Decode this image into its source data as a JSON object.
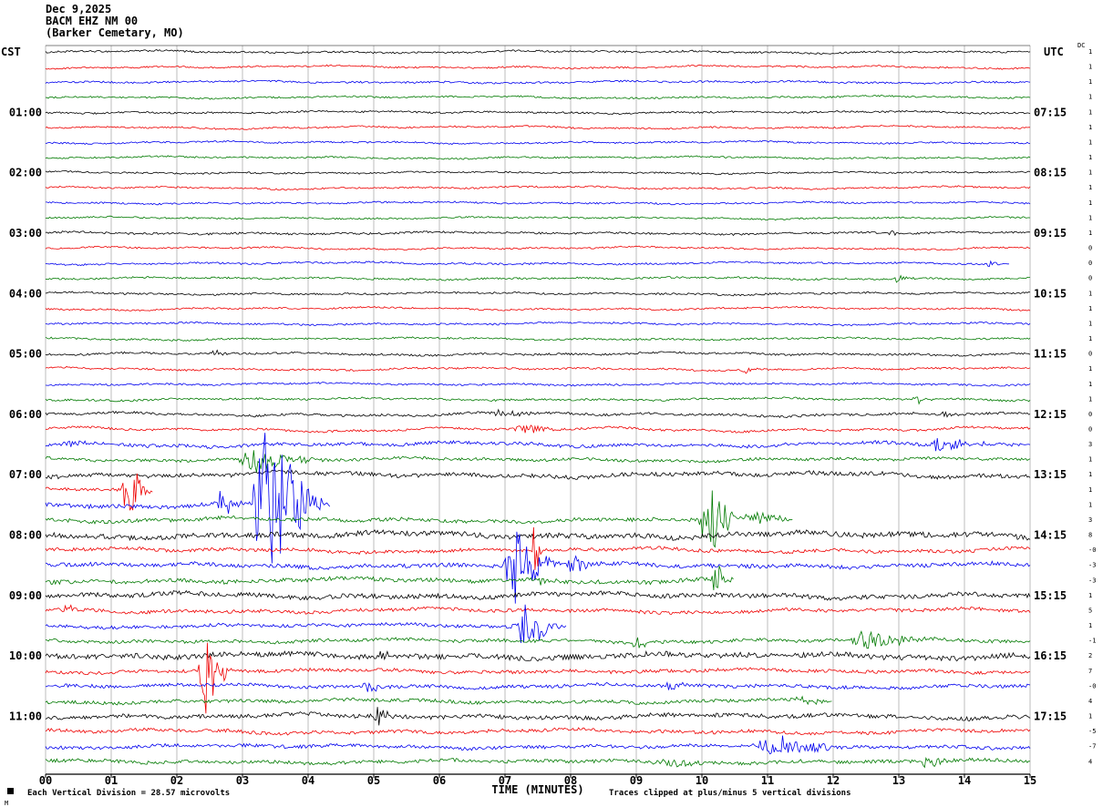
{
  "header": {
    "date_line": "Dec 9,2025",
    "station_line": "BACM EHZ NM 00",
    "location_line": "(Barker Cemetary, MO)"
  },
  "axis": {
    "left_tz": "CST",
    "right_tz": "UTC",
    "dc_header": "DC",
    "x_title": "TIME (MINUTES)",
    "footer_left": "Each Vertical Division =   28.57 microvolts",
    "footer_right": "Traces clipped at plus/minus 5 vertical divisions",
    "corner_mark": "M"
  },
  "chart_data": {
    "type": "line",
    "subtype": "helicorder-seismogram",
    "x_range": [
      0,
      15
    ],
    "minutes_per_row": 15,
    "clip_divisions": 5,
    "microvolts_per_division": 28.57,
    "x_tick_labels": [
      "00",
      "01",
      "02",
      "03",
      "04",
      "05",
      "06",
      "07",
      "08",
      "09",
      "10",
      "11",
      "12",
      "13",
      "14",
      "15"
    ],
    "colors": {
      "black": "#000000",
      "red": "#ee0000",
      "blue": "#0000ee",
      "green": "#007a00"
    },
    "rows": [
      {
        "color": "black",
        "dc": "1",
        "noise": 1.0,
        "wander": 1.6,
        "events": []
      },
      {
        "color": "red",
        "dc": "1",
        "noise": 0.9,
        "wander": 2.0,
        "events": []
      },
      {
        "color": "blue",
        "dc": "1",
        "noise": 1.0,
        "wander": 1.6,
        "events": []
      },
      {
        "color": "green",
        "dc": "1",
        "noise": 0.9,
        "wander": 1.6,
        "events": []
      },
      {
        "color": "black",
        "left": "01:00",
        "right": "07:15",
        "dc": "1",
        "noise": 1.0,
        "wander": 1.6,
        "events": []
      },
      {
        "color": "red",
        "dc": "1",
        "noise": 0.9,
        "wander": 2.0,
        "events": []
      },
      {
        "color": "blue",
        "dc": "1",
        "noise": 0.9,
        "wander": 1.6,
        "events": []
      },
      {
        "color": "green",
        "dc": "1",
        "noise": 0.9,
        "wander": 1.6,
        "events": []
      },
      {
        "color": "black",
        "left": "02:00",
        "right": "08:15",
        "dc": "1",
        "noise": 0.9,
        "wander": 1.4,
        "events": []
      },
      {
        "color": "red",
        "dc": "1",
        "noise": 0.9,
        "wander": 1.9,
        "events": []
      },
      {
        "color": "blue",
        "dc": "1",
        "noise": 0.9,
        "wander": 1.4,
        "events": []
      },
      {
        "color": "green",
        "dc": "1",
        "noise": 0.9,
        "wander": 1.4,
        "events": []
      },
      {
        "color": "black",
        "left": "03:00",
        "right": "09:15",
        "dc": "1",
        "noise": 1.1,
        "wander": 1.6,
        "events": [
          [
            12.8,
            13.15,
            4
          ]
        ]
      },
      {
        "color": "red",
        "dc": "0",
        "noise": 0.9,
        "wander": 1.9,
        "events": []
      },
      {
        "color": "blue",
        "dc": "0",
        "noise": 1.0,
        "wander": 1.6,
        "events": [
          [
            14.3,
            14.7,
            4
          ]
        ]
      },
      {
        "color": "green",
        "dc": "0",
        "noise": 1.0,
        "wander": 1.6,
        "events": [
          [
            12.9,
            13.3,
            5
          ]
        ]
      },
      {
        "color": "black",
        "left": "04:00",
        "right": "10:15",
        "dc": "1",
        "noise": 1.0,
        "wander": 1.6,
        "events": []
      },
      {
        "color": "red",
        "dc": "1",
        "noise": 0.9,
        "wander": 2.0,
        "events": []
      },
      {
        "color": "blue",
        "dc": "1",
        "noise": 1.0,
        "wander": 1.6,
        "events": []
      },
      {
        "color": "green",
        "dc": "1",
        "noise": 1.0,
        "wander": 1.6,
        "events": []
      },
      {
        "color": "black",
        "left": "05:00",
        "right": "11:15",
        "dc": "0",
        "noise": 1.1,
        "wander": 2.0,
        "events": [
          [
            2.5,
            2.9,
            5
          ]
        ]
      },
      {
        "color": "red",
        "dc": "1",
        "noise": 1.0,
        "wander": 2.0,
        "events": [
          [
            10.6,
            11.0,
            4
          ]
        ]
      },
      {
        "color": "blue",
        "dc": "1",
        "noise": 1.0,
        "wander": 1.6,
        "events": []
      },
      {
        "color": "green",
        "dc": "1",
        "noise": 1.1,
        "wander": 1.8,
        "events": [
          [
            13.2,
            13.6,
            6
          ]
        ]
      },
      {
        "color": "black",
        "left": "06:00",
        "right": "12:15",
        "dc": "0",
        "noise": 1.3,
        "wander": 2.5,
        "events": [
          [
            6.8,
            7.6,
            5
          ],
          [
            13.6,
            14.0,
            4
          ]
        ]
      },
      {
        "color": "red",
        "dc": "0",
        "noise": 1.2,
        "wander": 3.0,
        "events": [
          [
            7.1,
            8.0,
            6
          ]
        ]
      },
      {
        "color": "blue",
        "dc": "3",
        "noise": 1.8,
        "wander": 3.0,
        "events": [
          [
            0.2,
            0.7,
            4
          ],
          [
            13.3,
            14.6,
            8
          ]
        ]
      },
      {
        "color": "green",
        "dc": "1",
        "noise": 1.5,
        "wander": 2.5,
        "events": [
          [
            2.9,
            4.4,
            14
          ]
        ]
      },
      {
        "color": "black",
        "left": "07:00",
        "right": "13:15",
        "dc": "1",
        "noise": 2.2,
        "wander": 3.5,
        "events": []
      },
      {
        "color": "red",
        "dc": "1",
        "noise": 1.6,
        "wander": 2.5,
        "events": [
          [
            1.15,
            1.65,
            40
          ],
          [
            9.55,
            10.35,
            22
          ]
        ]
      },
      {
        "color": "blue",
        "dc": "1",
        "noise": 2.2,
        "wander": 3.0,
        "events": [
          [
            2.55,
            3.1,
            16
          ],
          [
            3.1,
            4.35,
            85
          ],
          [
            4.35,
            5.0,
            10
          ]
        ]
      },
      {
        "color": "green",
        "dc": "3",
        "noise": 2.0,
        "wander": 3.0,
        "events": [
          [
            9.95,
            10.6,
            48
          ],
          [
            10.6,
            11.4,
            10
          ]
        ]
      },
      {
        "color": "black",
        "left": "08:00",
        "right": "14:15",
        "dc": "8",
        "noise": 2.8,
        "wander": 4.0,
        "events": []
      },
      {
        "color": "red",
        "dc": "-0",
        "noise": 1.8,
        "wander": 3.0,
        "events": [
          [
            7.42,
            7.58,
            50
          ]
        ]
      },
      {
        "color": "blue",
        "dc": "-3",
        "noise": 2.2,
        "wander": 3.0,
        "events": [
          [
            6.95,
            7.85,
            45
          ],
          [
            7.85,
            8.6,
            10
          ]
        ]
      },
      {
        "color": "green",
        "dc": "-3",
        "noise": 2.2,
        "wander": 3.0,
        "events": [
          [
            7.5,
            7.9,
            8
          ],
          [
            10.15,
            10.5,
            24
          ]
        ]
      },
      {
        "color": "black",
        "left": "09:00",
        "right": "15:15",
        "dc": "1",
        "noise": 2.4,
        "wander": 3.5,
        "events": []
      },
      {
        "color": "red",
        "dc": "5",
        "noise": 1.8,
        "wander": 3.0,
        "events": [
          [
            0.2,
            0.55,
            8
          ]
        ]
      },
      {
        "color": "blue",
        "dc": "1",
        "noise": 1.8,
        "wander": 2.5,
        "events": [
          [
            7.1,
            7.95,
            30
          ]
        ]
      },
      {
        "color": "green",
        "dc": "-1",
        "noise": 1.8,
        "wander": 2.5,
        "events": [
          [
            8.9,
            9.4,
            6
          ],
          [
            12.2,
            13.6,
            11
          ]
        ]
      },
      {
        "color": "black",
        "left": "10:00",
        "right": "16:15",
        "dc": "2",
        "noise": 2.8,
        "wander": 3.5,
        "events": [
          [
            5.05,
            5.35,
            7
          ]
        ]
      },
      {
        "color": "red",
        "dc": "7",
        "noise": 1.8,
        "wander": 2.5,
        "events": [
          [
            2.3,
            2.9,
            50
          ],
          [
            2.38,
            2.52,
            70
          ]
        ]
      },
      {
        "color": "blue",
        "dc": "-0",
        "noise": 1.8,
        "wander": 2.5,
        "events": [
          [
            4.8,
            5.3,
            6
          ],
          [
            9.4,
            10.0,
            5
          ]
        ]
      },
      {
        "color": "green",
        "dc": "4",
        "noise": 1.8,
        "wander": 2.5,
        "events": [
          [
            11.4,
            12.0,
            5
          ]
        ]
      },
      {
        "color": "black",
        "left": "11:00",
        "right": "17:15",
        "dc": "1",
        "noise": 2.2,
        "wander": 3.0,
        "events": [
          [
            5.0,
            5.35,
            12
          ]
        ]
      },
      {
        "color": "red",
        "dc": "-5",
        "noise": 1.8,
        "wander": 3.0,
        "events": []
      },
      {
        "color": "blue",
        "dc": "-7",
        "noise": 1.8,
        "wander": 2.5,
        "events": [
          [
            10.8,
            12.3,
            13
          ]
        ]
      },
      {
        "color": "green",
        "dc": "4",
        "noise": 1.8,
        "wander": 2.5,
        "events": [
          [
            9.2,
            10.3,
            6
          ],
          [
            13.3,
            13.85,
            8
          ]
        ]
      }
    ]
  }
}
